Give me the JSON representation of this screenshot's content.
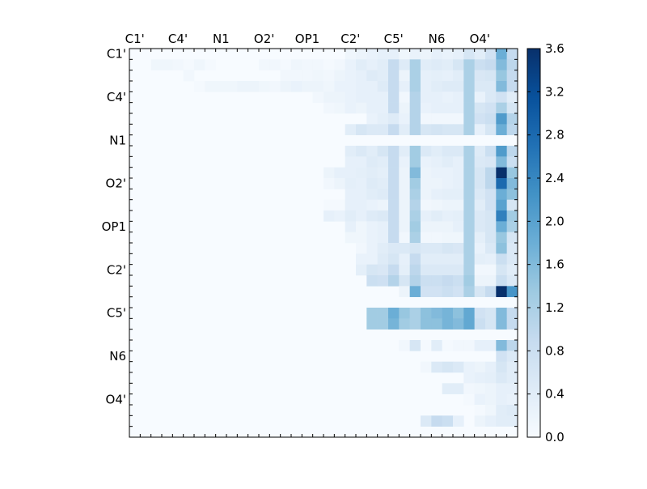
{
  "chart_data": {
    "type": "heatmap",
    "title": "",
    "xlabel": "",
    "ylabel": "",
    "n": 36,
    "x_tick_labels": [
      "C1'",
      "C4'",
      "N1",
      "O2'",
      "OP1",
      "C2'",
      "C5'",
      "N6",
      "O4'"
    ],
    "y_tick_labels": [
      "C1'",
      "C4'",
      "N1",
      "O2'",
      "OP1",
      "C2'",
      "C5'",
      "N6",
      "O4'"
    ],
    "tick_positions": [
      0,
      4,
      8,
      12,
      16,
      20,
      24,
      28,
      32
    ],
    "colormap": "Blues",
    "color_low": "#f7fbff",
    "color_high": "#08306b",
    "vmin": 0.0,
    "vmax": 3.6,
    "colorbar": {
      "ticks": [
        0.0,
        0.4,
        0.8,
        1.2,
        1.6,
        2.0,
        2.4,
        2.8,
        3.2,
        3.6
      ],
      "labels": [
        "0.0",
        "0.4",
        "0.8",
        "1.2",
        "1.6",
        "2.0",
        "2.4",
        "2.8",
        "3.2",
        "3.6"
      ]
    },
    "grid": false,
    "matrix": [
      [
        0,
        0,
        0,
        0,
        0,
        0,
        0,
        0,
        0,
        0,
        0,
        0,
        0,
        0,
        0,
        0,
        0,
        0,
        0,
        0,
        0.15,
        0.2,
        0.25,
        0.3,
        0.3,
        0.15,
        0.25,
        0.2,
        0.3,
        0.25,
        0.3,
        0.6,
        0.4,
        0.7,
        1.8,
        0.9
      ],
      [
        0,
        0,
        0.15,
        0.15,
        0.1,
        0.05,
        0.15,
        0.05,
        0,
        0,
        0,
        0,
        0.1,
        0.1,
        0.05,
        0.15,
        0.1,
        0.1,
        0.05,
        0.1,
        0.25,
        0.4,
        0.3,
        0.4,
        0.9,
        0.45,
        1.2,
        0.4,
        0.45,
        0.4,
        0.6,
        1.2,
        0.8,
        0.9,
        1.6,
        1.0
      ],
      [
        0,
        0,
        0,
        0,
        0,
        0.1,
        0,
        0,
        0,
        0,
        0,
        0,
        0,
        0,
        0.1,
        0.1,
        0.1,
        0.15,
        0.1,
        0.2,
        0.25,
        0.3,
        0.45,
        0.4,
        0.9,
        0.2,
        1.2,
        0.3,
        0.35,
        0.3,
        0.4,
        1.2,
        0.55,
        0.6,
        1.4,
        0.9
      ],
      [
        0,
        0,
        0,
        0,
        0,
        0,
        0.05,
        0.15,
        0.15,
        0.15,
        0.2,
        0.2,
        0.15,
        0.1,
        0.2,
        0.25,
        0.2,
        0.2,
        0.15,
        0.25,
        0.25,
        0.3,
        0.3,
        0.45,
        0.9,
        0.3,
        1.2,
        0.3,
        0.4,
        0.45,
        0.45,
        1.2,
        0.5,
        0.5,
        1.6,
        0.9
      ],
      [
        0,
        0,
        0,
        0,
        0,
        0,
        0,
        0,
        0,
        0,
        0,
        0,
        0,
        0,
        0,
        0,
        0,
        0.1,
        0.2,
        0.2,
        0.25,
        0.3,
        0.3,
        0.3,
        0.9,
        0.1,
        1.1,
        0.3,
        0.3,
        0.25,
        0.3,
        1.2,
        0.25,
        0.5,
        0.7,
        0.4
      ],
      [
        0,
        0,
        0,
        0,
        0,
        0,
        0,
        0,
        0,
        0,
        0,
        0,
        0,
        0,
        0,
        0,
        0,
        0,
        0.1,
        0.15,
        0.25,
        0.2,
        0.3,
        0.3,
        0.9,
        0.2,
        1.1,
        0.25,
        0.3,
        0.3,
        0.3,
        1.2,
        0.6,
        0.7,
        1.2,
        0.6
      ],
      [
        0,
        0,
        0,
        0,
        0,
        0,
        0,
        0,
        0,
        0,
        0,
        0,
        0,
        0,
        0,
        0,
        0,
        0,
        0,
        0,
        0,
        0,
        0.25,
        0.35,
        0.45,
        0.25,
        1.1,
        0.1,
        0.1,
        0.1,
        0.1,
        1.2,
        0.7,
        0.8,
        2.1,
        1.1
      ],
      [
        0,
        0,
        0,
        0,
        0,
        0,
        0,
        0,
        0,
        0,
        0,
        0,
        0,
        0,
        0,
        0,
        0,
        0,
        0,
        0,
        0.4,
        0.6,
        0.5,
        0.5,
        0.9,
        0.4,
        1.1,
        0.6,
        0.65,
        0.6,
        0.6,
        1.2,
        0.3,
        0.6,
        1.8,
        1.0
      ],
      [
        0,
        0,
        0,
        0,
        0,
        0,
        0,
        0,
        0,
        0,
        0,
        0,
        0,
        0,
        0,
        0,
        0,
        0,
        0,
        0,
        0,
        0,
        0,
        0,
        0,
        0,
        0,
        0,
        0,
        0,
        0,
        0,
        0,
        0,
        0,
        0
      ],
      [
        0,
        0,
        0,
        0,
        0,
        0,
        0,
        0,
        0,
        0,
        0,
        0,
        0,
        0,
        0,
        0,
        0,
        0,
        0,
        0,
        0.4,
        0.5,
        0.4,
        0.6,
        0.9,
        0.4,
        1.3,
        0.5,
        0.4,
        0.5,
        0.5,
        1.2,
        0.45,
        0.8,
        2.1,
        1.0
      ],
      [
        0,
        0,
        0,
        0,
        0,
        0,
        0,
        0,
        0,
        0,
        0,
        0,
        0,
        0,
        0,
        0,
        0,
        0,
        0,
        0,
        0.3,
        0.3,
        0.45,
        0.4,
        0.9,
        0.25,
        1.3,
        0.25,
        0.3,
        0.4,
        0.3,
        1.2,
        0.5,
        0.55,
        1.6,
        0.8
      ],
      [
        0,
        0,
        0,
        0,
        0,
        0,
        0,
        0,
        0,
        0,
        0,
        0,
        0,
        0,
        0,
        0,
        0,
        0,
        0.2,
        0.3,
        0.3,
        0.35,
        0.4,
        0.35,
        0.9,
        0.2,
        1.6,
        0.2,
        0.25,
        0.25,
        0.3,
        1.2,
        0.6,
        1.0,
        3.6,
        1.4
      ],
      [
        0,
        0,
        0,
        0,
        0,
        0,
        0,
        0,
        0,
        0,
        0,
        0,
        0,
        0,
        0,
        0,
        0,
        0,
        0.1,
        0.2,
        0.35,
        0.3,
        0.45,
        0.4,
        0.9,
        0.2,
        1.3,
        0.2,
        0.2,
        0.25,
        0.3,
        1.2,
        0.6,
        1.0,
        2.8,
        1.6
      ],
      [
        0,
        0,
        0,
        0,
        0,
        0,
        0,
        0,
        0,
        0,
        0,
        0,
        0,
        0,
        0,
        0,
        0,
        0,
        0,
        0,
        0.3,
        0.3,
        0.4,
        0.45,
        0.9,
        0.2,
        1.2,
        0.2,
        0.3,
        0.35,
        0.35,
        1.2,
        0.5,
        0.7,
        1.8,
        1.5
      ],
      [
        0,
        0,
        0,
        0,
        0,
        0,
        0,
        0,
        0,
        0,
        0,
        0,
        0,
        0,
        0,
        0,
        0,
        0,
        0.05,
        0.05,
        0.3,
        0.3,
        0.25,
        0.2,
        0.9,
        0.2,
        1.1,
        0.1,
        0.15,
        0.2,
        0.2,
        1.2,
        0.4,
        0.7,
        2.0,
        0.6
      ],
      [
        0,
        0,
        0,
        0,
        0,
        0,
        0,
        0,
        0,
        0,
        0,
        0,
        0,
        0,
        0,
        0,
        0,
        0,
        0.3,
        0.25,
        0.4,
        0.3,
        0.45,
        0.5,
        0.9,
        0.2,
        1.2,
        0.3,
        0.4,
        0.3,
        0.35,
        1.2,
        0.5,
        0.6,
        2.5,
        1.3
      ],
      [
        0,
        0,
        0,
        0,
        0,
        0,
        0,
        0,
        0,
        0,
        0,
        0,
        0,
        0,
        0,
        0,
        0,
        0,
        0,
        0,
        0.3,
        0.15,
        0.25,
        0.3,
        0.9,
        0.2,
        1.3,
        0.2,
        0.2,
        0.2,
        0.3,
        1.2,
        0.5,
        0.6,
        1.8,
        1.2
      ],
      [
        0,
        0,
        0,
        0,
        0,
        0,
        0,
        0,
        0,
        0,
        0,
        0,
        0,
        0,
        0,
        0,
        0,
        0,
        0,
        0,
        0.15,
        0.15,
        0.25,
        0.3,
        0.9,
        0.1,
        1.2,
        0.1,
        0.1,
        0.15,
        0.15,
        1.2,
        0.35,
        0.6,
        1.4,
        0.6
      ],
      [
        0,
        0,
        0,
        0,
        0,
        0,
        0,
        0,
        0,
        0,
        0,
        0,
        0,
        0,
        0,
        0,
        0,
        0,
        0,
        0,
        0,
        0.1,
        0.25,
        0.4,
        0.5,
        0.5,
        0.6,
        0.5,
        0.5,
        0.6,
        0.55,
        1.2,
        0.25,
        0.5,
        1.5,
        0.5
      ],
      [
        0,
        0,
        0,
        0,
        0,
        0,
        0,
        0,
        0,
        0,
        0,
        0,
        0,
        0,
        0,
        0,
        0,
        0,
        0,
        0,
        0,
        0.25,
        0.25,
        0.45,
        0.6,
        0.3,
        0.9,
        0.4,
        0.4,
        0.4,
        0.4,
        1.2,
        0.35,
        0.3,
        0.8,
        0.5
      ],
      [
        0,
        0,
        0,
        0,
        0,
        0,
        0,
        0,
        0,
        0,
        0,
        0,
        0,
        0,
        0,
        0,
        0,
        0,
        0,
        0,
        0,
        0.35,
        0.6,
        0.55,
        0.9,
        0.35,
        1.0,
        0.5,
        0.5,
        0.5,
        0.5,
        1.2,
        0.1,
        0.1,
        0.6,
        0.4
      ],
      [
        0,
        0,
        0,
        0,
        0,
        0,
        0,
        0,
        0,
        0,
        0,
        0,
        0,
        0,
        0,
        0,
        0,
        0,
        0,
        0,
        0,
        0,
        0.8,
        0.75,
        1.1,
        0.6,
        1.1,
        0.8,
        0.8,
        0.9,
        0.8,
        1.3,
        0.2,
        0.2,
        0.8,
        0.5
      ],
      [
        0,
        0,
        0,
        0,
        0,
        0,
        0,
        0,
        0,
        0,
        0,
        0,
        0,
        0,
        0,
        0,
        0,
        0,
        0,
        0,
        0,
        0,
        0,
        0,
        0,
        0.2,
        1.8,
        0.7,
        0.7,
        0.8,
        0.7,
        1.2,
        0.6,
        0.9,
        3.6,
        2.2
      ],
      [
        0,
        0,
        0,
        0,
        0,
        0,
        0,
        0,
        0,
        0,
        0,
        0,
        0,
        0,
        0,
        0,
        0,
        0,
        0,
        0,
        0,
        0,
        0,
        0,
        0,
        0,
        0,
        0,
        0,
        0,
        0,
        0,
        0,
        0,
        0,
        0
      ],
      [
        0,
        0,
        0,
        0,
        0,
        0,
        0,
        0,
        0,
        0,
        0,
        0,
        0,
        0,
        0,
        0,
        0,
        0,
        0,
        0,
        0,
        0,
        1.3,
        1.3,
        1.8,
        1.4,
        1.2,
        1.5,
        1.6,
        1.7,
        1.5,
        1.9,
        0.7,
        0.6,
        1.6,
        0.9
      ],
      [
        0,
        0,
        0,
        0,
        0,
        0,
        0,
        0,
        0,
        0,
        0,
        0,
        0,
        0,
        0,
        0,
        0,
        0,
        0,
        0,
        0,
        0,
        1.3,
        1.3,
        1.7,
        1.3,
        1.2,
        1.5,
        1.5,
        1.7,
        1.6,
        1.9,
        0.8,
        0.6,
        1.6,
        0.9
      ],
      [
        0,
        0,
        0,
        0,
        0,
        0,
        0,
        0,
        0,
        0,
        0,
        0,
        0,
        0,
        0,
        0,
        0,
        0,
        0,
        0,
        0,
        0,
        0,
        0,
        0,
        0,
        0,
        0,
        0,
        0,
        0,
        0,
        0,
        0,
        0,
        0
      ],
      [
        0,
        0,
        0,
        0,
        0,
        0,
        0,
        0,
        0,
        0,
        0,
        0,
        0,
        0,
        0,
        0,
        0,
        0,
        0,
        0,
        0,
        0,
        0,
        0,
        0,
        0.1,
        0.6,
        0.05,
        0.4,
        0.05,
        0.1,
        0.1,
        0.3,
        0.3,
        1.6,
        1.0
      ],
      [
        0,
        0,
        0,
        0,
        0,
        0,
        0,
        0,
        0,
        0,
        0,
        0,
        0,
        0,
        0,
        0,
        0,
        0,
        0,
        0,
        0,
        0,
        0,
        0,
        0,
        0,
        0,
        0,
        0,
        0,
        0,
        0,
        0,
        0,
        0.7,
        0.5
      ],
      [
        0,
        0,
        0,
        0,
        0,
        0,
        0,
        0,
        0,
        0,
        0,
        0,
        0,
        0,
        0,
        0,
        0,
        0,
        0,
        0,
        0,
        0,
        0,
        0,
        0,
        0,
        0,
        0.1,
        0.5,
        0.6,
        0.5,
        0.25,
        0.2,
        0.3,
        0.6,
        0.4
      ],
      [
        0,
        0,
        0,
        0,
        0,
        0,
        0,
        0,
        0,
        0,
        0,
        0,
        0,
        0,
        0,
        0,
        0,
        0,
        0,
        0,
        0,
        0,
        0,
        0,
        0,
        0,
        0,
        0,
        0,
        0,
        0,
        0.25,
        0.3,
        0.35,
        0.5,
        0.4
      ],
      [
        0,
        0,
        0,
        0,
        0,
        0,
        0,
        0,
        0,
        0,
        0,
        0,
        0,
        0,
        0,
        0,
        0,
        0,
        0,
        0,
        0,
        0,
        0,
        0,
        0,
        0,
        0,
        0,
        0,
        0.4,
        0.4,
        0.1,
        0.15,
        0.2,
        0.3,
        0.3
      ],
      [
        0,
        0,
        0,
        0,
        0,
        0,
        0,
        0,
        0,
        0,
        0,
        0,
        0,
        0,
        0,
        0,
        0,
        0,
        0,
        0,
        0,
        0,
        0,
        0,
        0,
        0,
        0,
        0,
        0,
        0,
        0,
        0.05,
        0.25,
        0.2,
        0.3,
        0.25
      ],
      [
        0,
        0,
        0,
        0,
        0,
        0,
        0,
        0,
        0,
        0,
        0,
        0,
        0,
        0,
        0,
        0,
        0,
        0,
        0,
        0,
        0,
        0,
        0,
        0,
        0,
        0,
        0,
        0,
        0,
        0,
        0,
        0,
        0.05,
        0.15,
        0.4,
        0.45
      ],
      [
        0,
        0,
        0,
        0,
        0,
        0,
        0,
        0,
        0,
        0,
        0,
        0,
        0,
        0,
        0,
        0,
        0,
        0,
        0,
        0,
        0,
        0,
        0,
        0,
        0,
        0,
        0,
        0.5,
        0.9,
        0.8,
        0.3,
        0,
        0.2,
        0.3,
        0.4,
        0.4
      ],
      [
        0,
        0,
        0,
        0,
        0,
        0,
        0,
        0,
        0,
        0,
        0,
        0,
        0,
        0,
        0,
        0,
        0,
        0,
        0,
        0,
        0,
        0,
        0,
        0,
        0,
        0,
        0,
        0,
        0,
        0,
        0,
        0,
        0,
        0,
        0,
        0
      ]
    ]
  }
}
